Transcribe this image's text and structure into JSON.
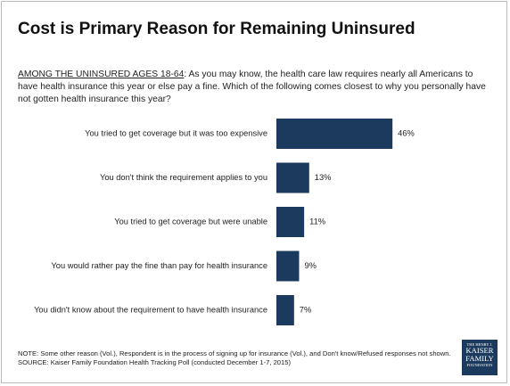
{
  "chart_data": {
    "type": "hbar",
    "title": "Cost is Primary Reason for Remaining Uninsured",
    "subtitle_lead": "AMONG THE UNINSURED AGES 18-64",
    "subtitle": ": As you may know, the health care law requires nearly all Americans to have health insurance this year or else pay a fine. Which of the following comes closest to why you personally have not gotten health insurance this year?",
    "categories": [
      "You tried to get coverage but it was too expensive",
      "You don't think the requirement applies to you",
      "You tried to get coverage but were unable",
      "You would rather pay the fine than pay for health insurance",
      "You didn't know about the requirement to have health insurance"
    ],
    "values": [
      46,
      13,
      11,
      9,
      7
    ],
    "value_labels": [
      "46%",
      "13%",
      "11%",
      "9%",
      "7%"
    ],
    "color": "#1c3a5e",
    "note": "NOTE: Some other reason (Vol.), Respondent is in the process of signing up for insurance (Vol.), and Don't know/Refused responses not shown.",
    "source": "SOURCE: Kaiser Family Foundation Health Tracking Poll (conducted December 1-7, 2015)",
    "logo": [
      "THE HENRY J.",
      "KAISER",
      "FAMILY",
      "FOUNDATION"
    ]
  }
}
